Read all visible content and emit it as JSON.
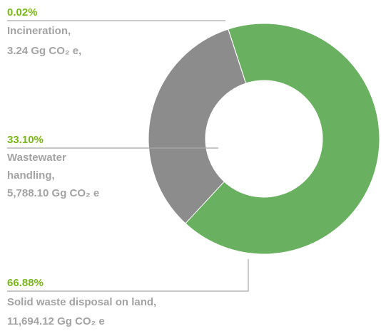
{
  "chart_data": {
    "type": "pie",
    "values": [
      0.02,
      33.1,
      66.88
    ],
    "value_labels": [
      "0.02%",
      "33.10%",
      "66.88%"
    ],
    "label_lines": [
      [
        "Incineration,",
        "3.24 Gg CO₂ e,"
      ],
      [
        "Wastewater",
        "handling,",
        "5,788.10 Gg CO₂ e"
      ],
      [
        "Solid waste disposal on land,",
        "11,694.12 Gg CO₂ e"
      ]
    ],
    "colors": [
      "#555555",
      "#8c8c8c",
      "#6ab061"
    ]
  }
}
